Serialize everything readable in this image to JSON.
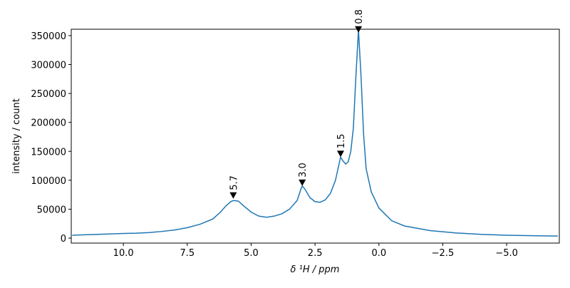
{
  "chart_data": {
    "type": "line",
    "xlabel": "δ ¹H / ppm",
    "ylabel": "intensity / count",
    "xlim": [
      12.04,
      -7.06
    ],
    "ylim": [
      -8600,
      361000
    ],
    "xticks": [
      {
        "value": 10,
        "label": "10.0"
      },
      {
        "value": 7.5,
        "label": "7.5"
      },
      {
        "value": 5,
        "label": "5.0"
      },
      {
        "value": 2.5,
        "label": "2.5"
      },
      {
        "value": 0,
        "label": "0.0"
      },
      {
        "value": -2.5,
        "label": "−2.5"
      },
      {
        "value": -5,
        "label": "−5.0"
      }
    ],
    "yticks": [
      0,
      50000,
      100000,
      150000,
      200000,
      250000,
      300000,
      350000
    ],
    "x": [
      12,
      11,
      10,
      9.5,
      9,
      8.5,
      8,
      7.5,
      7,
      6.5,
      6.2,
      6,
      5.8,
      5.7,
      5.5,
      5.3,
      5,
      4.7,
      4.4,
      4.1,
      3.8,
      3.5,
      3.2,
      3.05,
      3.0,
      2.9,
      2.7,
      2.5,
      2.3,
      2.1,
      1.9,
      1.7,
      1.55,
      1.5,
      1.4,
      1.3,
      1.2,
      1.1,
      1.0,
      0.9,
      0.8,
      0.7,
      0.6,
      0.5,
      0.3,
      0,
      -0.5,
      -1,
      -2,
      -3,
      -4,
      -5,
      -6,
      -7
    ],
    "series": [
      {
        "color": "#1f77b4",
        "values": [
          5000,
          6500,
          8000,
          8500,
          9500,
          11500,
          14000,
          18000,
          24000,
          33000,
          45000,
          55000,
          63000,
          65000,
          64000,
          56000,
          45000,
          38000,
          36000,
          38000,
          42000,
          50000,
          65000,
          85000,
          90000,
          85000,
          70000,
          63000,
          62000,
          66000,
          77000,
          100000,
          130000,
          140000,
          133000,
          128000,
          132000,
          150000,
          190000,
          280000,
          360000,
          280000,
          180000,
          120000,
          80000,
          52000,
          30000,
          21000,
          13000,
          9000,
          6500,
          5000,
          4200,
          3500
        ]
      }
    ],
    "peaks": {
      "color": "#000000",
      "x": [
        5.7,
        3.0,
        1.5,
        0.8
      ],
      "values": [
        73000,
        95000,
        145000,
        360000
      ],
      "labels": [
        "5.7",
        "3.0",
        "1.5",
        "0.8"
      ]
    }
  }
}
